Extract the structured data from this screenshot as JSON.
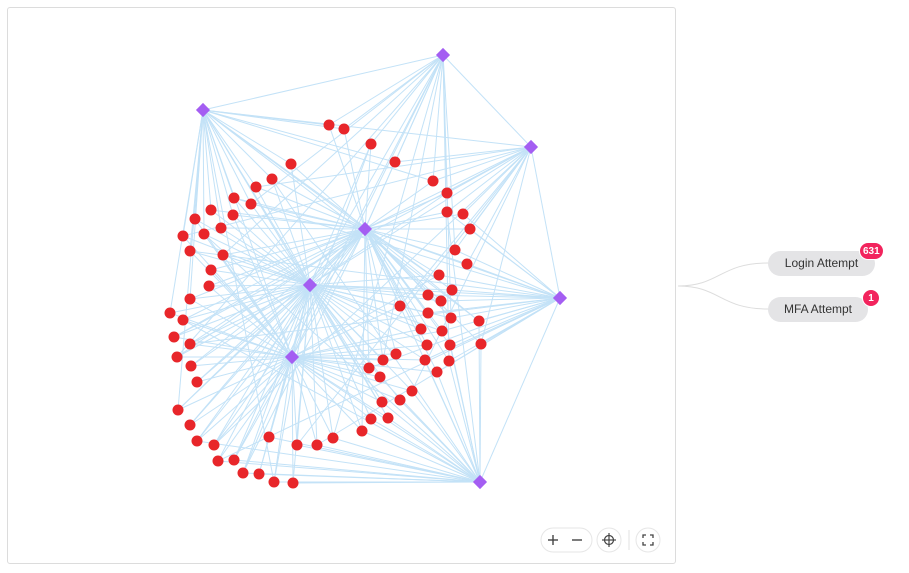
{
  "legend": {
    "items": [
      {
        "label": "Login Attempt",
        "count": 631
      },
      {
        "label": "MFA Attempt",
        "count": 1
      }
    ]
  }
}
